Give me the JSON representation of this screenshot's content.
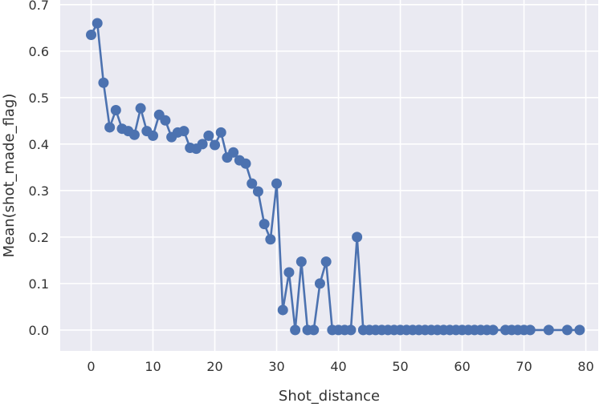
{
  "chart_data": {
    "type": "line",
    "title": "",
    "xlabel": "Shot_distance",
    "ylabel": "Mean(shot_made_flag)",
    "xlim": [
      -5,
      82
    ],
    "ylim": [
      -0.045,
      0.71
    ],
    "xticks": [
      0,
      10,
      20,
      30,
      40,
      50,
      60,
      70,
      80
    ],
    "yticks": [
      0.0,
      0.1,
      0.2,
      0.3,
      0.4,
      0.5,
      0.6,
      0.7
    ],
    "ytick_labels": [
      "0.0",
      "0.1",
      "0.2",
      "0.3",
      "0.4",
      "0.5",
      "0.6",
      "0.7"
    ],
    "grid": true,
    "background": "#EAEAF2",
    "series": [
      {
        "color": "#4C72B0",
        "markers": true,
        "x": [
          0,
          1,
          2,
          3,
          4,
          5,
          6,
          7,
          8,
          9,
          10,
          11,
          12,
          13,
          14,
          15,
          16,
          17,
          18,
          19,
          20,
          21,
          22,
          23,
          24,
          25,
          26,
          27,
          28,
          29,
          30,
          31,
          32,
          33,
          34,
          35,
          36,
          37,
          38,
          39,
          40,
          41,
          42,
          43,
          44,
          45,
          46,
          47,
          48,
          49,
          50,
          51,
          52,
          53,
          54,
          55,
          56,
          57,
          58,
          59,
          60,
          61,
          62,
          63,
          64,
          65,
          67,
          68,
          69,
          70,
          71,
          74,
          77,
          79
        ],
        "y": [
          0.635,
          0.66,
          0.532,
          0.436,
          0.473,
          0.433,
          0.428,
          0.42,
          0.477,
          0.428,
          0.418,
          0.463,
          0.451,
          0.415,
          0.425,
          0.428,
          0.392,
          0.39,
          0.4,
          0.418,
          0.398,
          0.425,
          0.371,
          0.382,
          0.365,
          0.358,
          0.315,
          0.298,
          0.228,
          0.195,
          0.315,
          0.043,
          0.124,
          0.0,
          0.147,
          0.0,
          0.0,
          0.1,
          0.147,
          0.0,
          0.0,
          0.0,
          0.0,
          0.2,
          0.0,
          0.0,
          0.0,
          0.0,
          0.0,
          0.0,
          0.0,
          0.0,
          0.0,
          0.0,
          0.0,
          0.0,
          0.0,
          0.0,
          0.0,
          0.0,
          0.0,
          0.0,
          0.0,
          0.0,
          0.0,
          0.0,
          0.0,
          0.0,
          0.0,
          0.0,
          0.0,
          0.0,
          0.0,
          0.0
        ]
      }
    ]
  }
}
